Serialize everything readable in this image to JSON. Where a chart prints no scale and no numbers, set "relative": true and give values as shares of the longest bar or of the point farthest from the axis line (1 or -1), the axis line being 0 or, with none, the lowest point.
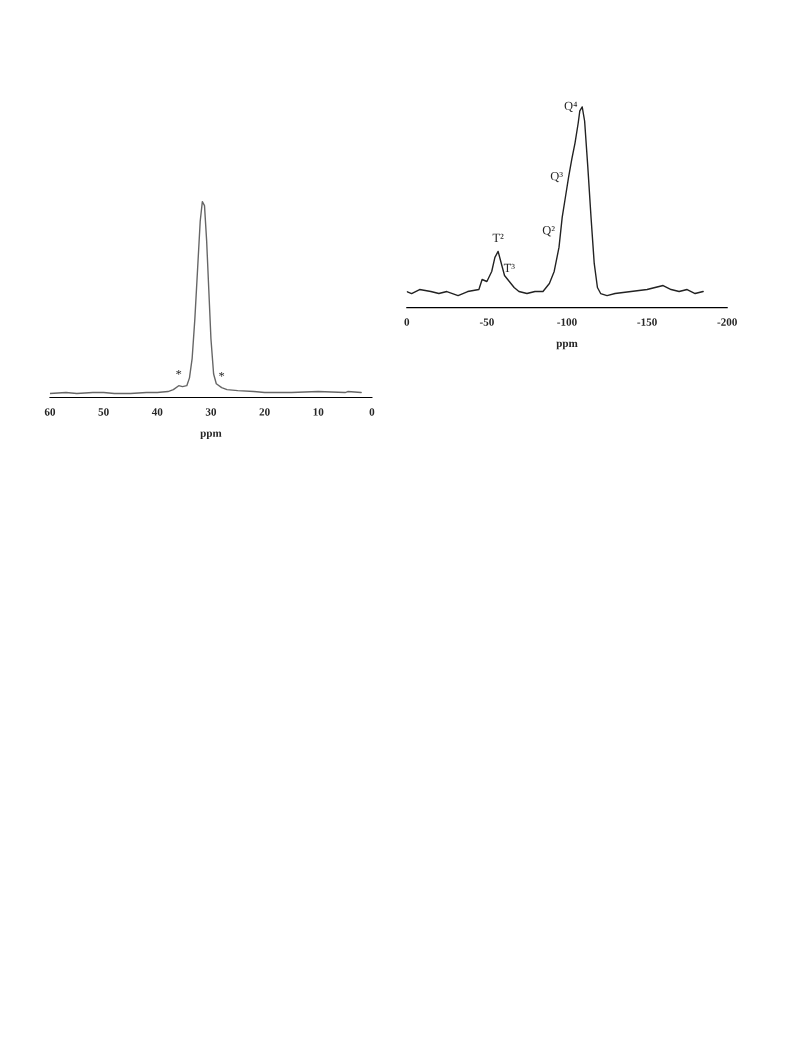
{
  "chart_data": [
    {
      "type": "line",
      "relative": true,
      "xlabel": "ppm",
      "xlim": [
        60,
        0
      ],
      "xticks": [
        60,
        50,
        40,
        30,
        20,
        10,
        0
      ],
      "tick_labels": "x",
      "line_style": "solid",
      "series": [
        {
          "color": "#666666",
          "x": [
            60,
            57,
            55,
            52,
            50,
            48,
            45,
            42,
            40,
            38,
            37,
            36,
            35.3,
            34.5,
            34,
            33.5,
            33,
            32.5,
            32,
            31.6,
            31.2,
            30.8,
            30.4,
            30,
            29.5,
            29,
            28,
            27,
            25,
            22,
            20,
            15,
            10,
            5,
            4.5,
            2
          ],
          "values": [
            0.02,
            0.025,
            0.02,
            0.025,
            0.025,
            0.02,
            0.02,
            0.025,
            0.025,
            0.03,
            0.04,
            0.06,
            0.055,
            0.06,
            0.1,
            0.2,
            0.4,
            0.65,
            0.9,
            1.0,
            0.98,
            0.8,
            0.55,
            0.3,
            0.12,
            0.07,
            0.05,
            0.04,
            0.035,
            0.03,
            0.025,
            0.025,
            0.03,
            0.025,
            0.03,
            0.025
          ]
        }
      ],
      "annotations": [
        {
          "text": "*",
          "x": 36,
          "y": 0.07
        },
        {
          "text": "*",
          "x": 28,
          "y": 0.06
        }
      ]
    },
    {
      "type": "line",
      "relative": true,
      "xlabel": "ppm",
      "xlim": [
        0,
        -200
      ],
      "xticks": [
        0,
        -50,
        -100,
        -150,
        -200
      ],
      "tick_labels": "x",
      "line_style": "solid",
      "series": [
        {
          "color": "#222222",
          "x": [
            0,
            -3,
            -8,
            -15,
            -20,
            -25,
            -32,
            -38,
            -45,
            -47,
            -50,
            -53,
            -55,
            -57,
            -59,
            -61,
            -64,
            -67,
            -70,
            -75,
            -80,
            -85,
            -89,
            -92,
            -95,
            -97,
            -99,
            -101,
            -103,
            -105,
            -107,
            -108,
            -109.5,
            -111,
            -113,
            -115,
            -117,
            -119,
            -121,
            -125,
            -130,
            -140,
            -150,
            -155,
            -160,
            -165,
            -170,
            -175,
            -180,
            -185
          ],
          "values": [
            0.08,
            0.07,
            0.09,
            0.08,
            0.07,
            0.08,
            0.06,
            0.08,
            0.09,
            0.14,
            0.13,
            0.18,
            0.25,
            0.28,
            0.22,
            0.16,
            0.13,
            0.1,
            0.08,
            0.07,
            0.08,
            0.08,
            0.12,
            0.18,
            0.3,
            0.45,
            0.55,
            0.65,
            0.74,
            0.82,
            0.92,
            0.98,
            1.0,
            0.93,
            0.7,
            0.45,
            0.22,
            0.1,
            0.07,
            0.06,
            0.07,
            0.08,
            0.09,
            0.1,
            0.11,
            0.09,
            0.08,
            0.09,
            0.07,
            0.08
          ]
        }
      ],
      "annotations": [
        {
          "text": "T²",
          "x": -57,
          "y": 0.3
        },
        {
          "text": "T³",
          "x": -64,
          "y": 0.15
        },
        {
          "text": "Q²",
          "x": -96,
          "y": 0.38
        },
        {
          "text": "Q³",
          "x": -101,
          "y": 0.65
        },
        {
          "text": "Q⁴",
          "x": -110,
          "y": 1.0
        }
      ]
    }
  ]
}
